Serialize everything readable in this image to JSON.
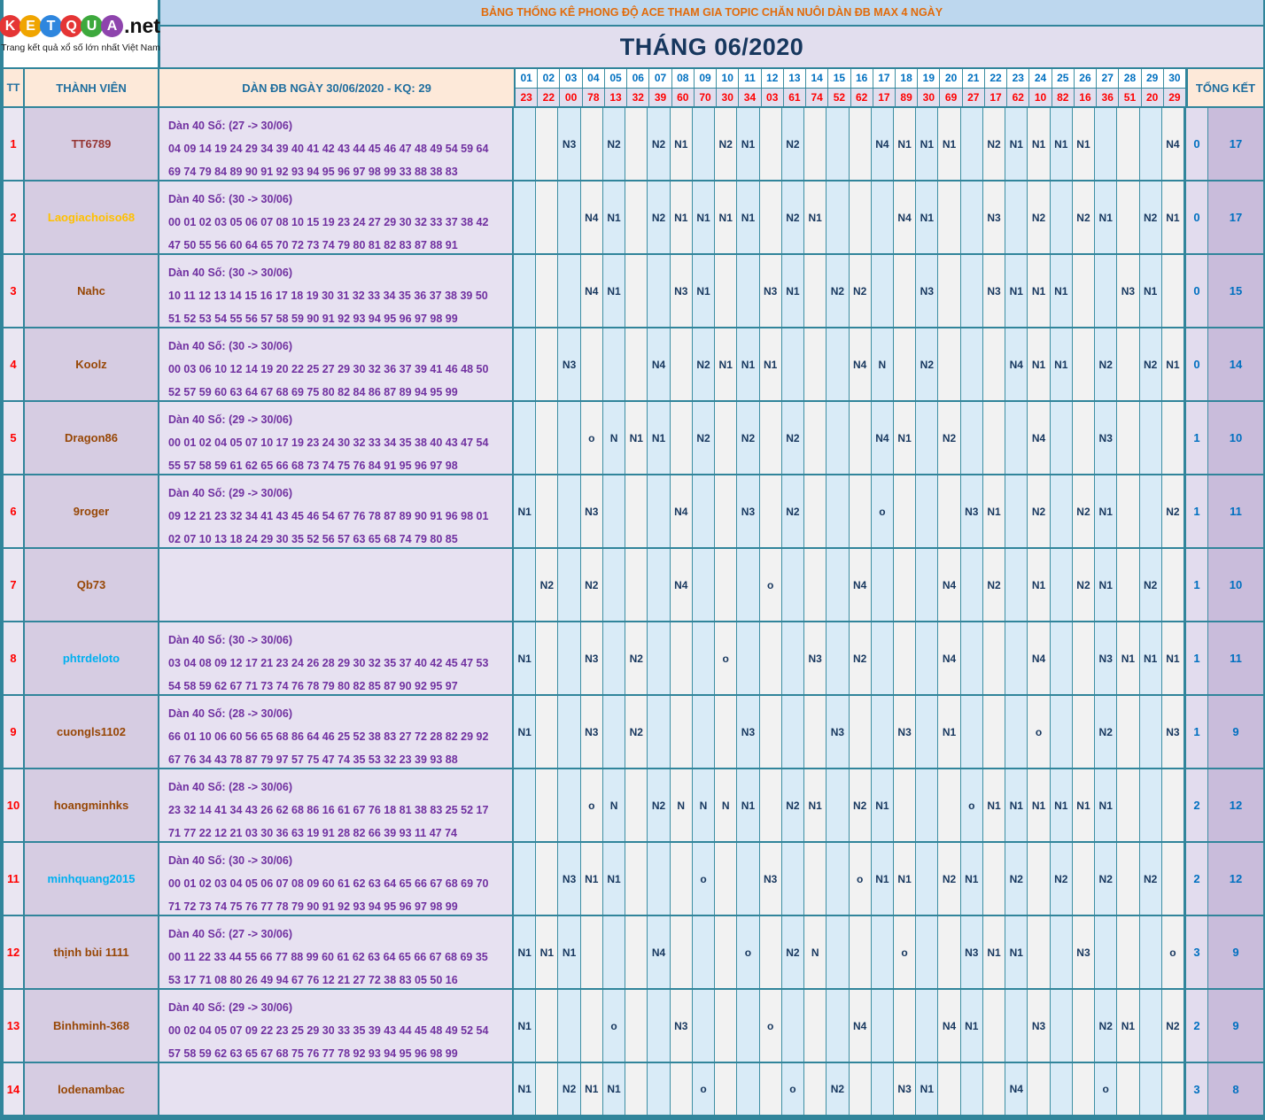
{
  "logo": {
    "letters": [
      {
        "ch": "K",
        "bg": "#E53535"
      },
      {
        "ch": "E",
        "bg": "#F0A500"
      },
      {
        "ch": "T",
        "bg": "#2E86DE"
      },
      {
        "ch": "Q",
        "bg": "#E53535"
      },
      {
        "ch": "U",
        "bg": "#3DA93D"
      },
      {
        "ch": "A",
        "bg": "#8E44AD"
      }
    ],
    "suffix": ".net",
    "tagline": "Trang kết quả xổ số lớn nhất Việt Nam"
  },
  "header": {
    "title": "BẢNG THỐNG KÊ PHONG ĐỘ ACE THAM GIA TOPIC CHĂN NUÔI DÀN ĐB MAX 4 NGÀY",
    "month": "THÁNG 06/2020"
  },
  "colors": {
    "teal_border": "#31859B",
    "title_orange": "#E26B0A",
    "navy_text": "#17375E",
    "purple_text": "#7030A0",
    "blue_header": "#0070C0",
    "red_value": "#FF0000",
    "default_name": "#974706"
  },
  "table": {
    "col_tt": "TT",
    "col_member": "THÀNH VIÊN",
    "col_dan": "DÀN ĐB NGÀY 30/06/2020 - KQ: 29",
    "col_total": "TỔNG KẾT",
    "days": [
      "01",
      "02",
      "03",
      "04",
      "05",
      "06",
      "07",
      "08",
      "09",
      "10",
      "11",
      "12",
      "13",
      "14",
      "15",
      "16",
      "17",
      "18",
      "19",
      "20",
      "21",
      "22",
      "23",
      "24",
      "25",
      "26",
      "27",
      "28",
      "29",
      "30"
    ],
    "day_values": [
      "23",
      "22",
      "00",
      "78",
      "13",
      "32",
      "39",
      "60",
      "70",
      "30",
      "34",
      "03",
      "61",
      "74",
      "52",
      "62",
      "17",
      "89",
      "30",
      "69",
      "27",
      "17",
      "62",
      "10",
      "82",
      "16",
      "36",
      "51",
      "20",
      "29"
    ],
    "rows": [
      {
        "tt": "1",
        "name": "TT6789",
        "name_color": "#963634",
        "desc": "Dàn 40 Số: (27 -> 30/06)",
        "nums1": "04 09 14 19 24 29 34 39 40 41 42 43 44 45 46 47 48 49 54 59 64",
        "nums2": "69 74 79 84 89 90 91 92 93 94 95 96 97 98 99 33 88 38 83",
        "cells": {
          "3": "N3",
          "5": "N2",
          "7": "N2",
          "8": "N1",
          "10": "N2",
          "11": "N1",
          "13": "N2",
          "17": "N4",
          "18": "N1",
          "19": "N1",
          "20": "N1",
          "22": "N2",
          "23": "N1",
          "24": "N1",
          "25": "N1",
          "26": "N1",
          "30": "N4"
        },
        "o_total": "0",
        "n_total": "17"
      },
      {
        "tt": "2",
        "name": "Laogiachoiso68",
        "name_color": "#FFC000",
        "desc": "Dàn 40 Số: (30 -> 30/06)",
        "nums1": "00 01 02 03 05 06 07 08 10 15 19 23 24 27 29 30 32 33 37 38 42",
        "nums2": "47 50 55 56 60 64 65 70 72 73 74 79 80 81 82 83 87 88 91",
        "cells": {
          "4": "N4",
          "5": "N1",
          "7": "N2",
          "8": "N1",
          "9": "N1",
          "10": "N1",
          "11": "N1",
          "13": "N2",
          "14": "N1",
          "18": "N4",
          "19": "N1",
          "22": "N3",
          "24": "N2",
          "26": "N2",
          "27": "N1",
          "29": "N2",
          "30": "N1"
        },
        "o_total": "0",
        "n_total": "17"
      },
      {
        "tt": "3",
        "name": "Nahc",
        "name_color": "#974706",
        "desc": "Dàn 40 Số: (30 -> 30/06)",
        "nums1": "10 11 12 13 14 15 16 17 18 19 30 31 32 33 34 35 36 37 38 39 50",
        "nums2": "51 52 53 54 55 56 57 58 59 90 91 92 93 94 95 96 97 98 99",
        "cells": {
          "4": "N4",
          "5": "N1",
          "8": "N3",
          "9": "N1",
          "12": "N3",
          "13": "N1",
          "15": "N2",
          "16": "N2",
          "19": "N3",
          "22": "N3",
          "23": "N1",
          "24": "N1",
          "25": "N1",
          "28": "N3",
          "29": "N1"
        },
        "o_total": "0",
        "n_total": "15"
      },
      {
        "tt": "4",
        "name": "Koolz",
        "name_color": "#974706",
        "desc": "Dàn 40 Số: (30 -> 30/06)",
        "nums1": "00 03 06 10 12 14 19 20 22 25 27 29 30 32 36 37 39 41 46 48 50",
        "nums2": "52 57 59 60 63 64 67 68 69 75 80 82 84 86 87 89 94 95 99",
        "cells": {
          "3": "N3",
          "7": "N4",
          "9": "N2",
          "10": "N1",
          "11": "N1",
          "12": "N1",
          "16": "N4",
          "17": "N",
          "19": "N2",
          "23": "N4",
          "24": "N1",
          "25": "N1",
          "27": "N2",
          "29": "N2",
          "30": "N1"
        },
        "o_total": "0",
        "n_total": "14"
      },
      {
        "tt": "5",
        "name": "Dragon86",
        "name_color": "#974706",
        "desc": "Dàn 40 Số: (29 -> 30/06)",
        "nums1": "00 01 02 04 05 07 10 17 19 23 24 30 32 33 34 35 38 40 43 47 54",
        "nums2": "55 57 58 59 61 62 65 66 68 73 74 75 76 84 91 95 96 97 98",
        "cells": {
          "4": "o",
          "5": "N",
          "6": "N1",
          "7": "N1",
          "9": "N2",
          "11": "N2",
          "13": "N2",
          "17": "N4",
          "18": "N1",
          "20": "N2",
          "24": "N4",
          "27": "N3"
        },
        "o_total": "1",
        "n_total": "10"
      },
      {
        "tt": "6",
        "name": "9roger",
        "name_color": "#974706",
        "desc": "Dàn 40 Số: (29 -> 30/06)",
        "nums1": "09 12 21 23 32 34 41 43 45 46 54 67 76 78 87 89 90 91 96 98 01",
        "nums2": "02 07 10 13 18 24 29 30 35 52 56 57 63 65 68 74 79 80 85",
        "cells": {
          "1": "N1",
          "4": "N3",
          "8": "N4",
          "11": "N3",
          "13": "N2",
          "17": "o",
          "21": "N3",
          "22": "N1",
          "24": "N2",
          "26": "N2",
          "27": "N1",
          "30": "N2"
        },
        "o_total": "1",
        "n_total": "11"
      },
      {
        "tt": "7",
        "name": "Qb73",
        "name_color": "#974706",
        "desc": "",
        "nums1": "",
        "nums2": "",
        "cells": {
          "2": "N2",
          "4": "N2",
          "8": "N4",
          "12": "o",
          "16": "N4",
          "20": "N4",
          "22": "N2",
          "24": "N1",
          "26": "N2",
          "27": "N1",
          "29": "N2"
        },
        "o_total": "1",
        "n_total": "10"
      },
      {
        "tt": "8",
        "name": "phtrdeloto",
        "name_color": "#00B0F0",
        "desc": "Dàn 40 Số: (30 -> 30/06)",
        "nums1": "03 04 08 09 12 17 21 23 24 26 28 29 30 32 35 37 40 42 45 47 53",
        "nums2": "54 58 59 62 67 71 73 74 76 78 79 80 82 85 87 90 92 95 97",
        "cells": {
          "1": "N1",
          "4": "N3",
          "6": "N2",
          "10": "o",
          "14": "N3",
          "16": "N2",
          "20": "N4",
          "24": "N4",
          "27": "N3",
          "28": "N1",
          "29": "N1",
          "30": "N1"
        },
        "o_total": "1",
        "n_total": "11"
      },
      {
        "tt": "9",
        "name": "cuongls1102",
        "name_color": "#974706",
        "desc": "Dàn 40 Số: (28 -> 30/06)",
        "nums1": "66 01 10 06 60 56 65 68 86 64 46 25 52 38 83 27 72 28 82 29 92",
        "nums2": "67 76 34 43 78 87 79 97 57 75 47 74 35 53 32 23 39 93 88",
        "cells": {
          "1": "N1",
          "4": "N3",
          "6": "N2",
          "11": "N3",
          "15": "N3",
          "18": "N3",
          "20": "N1",
          "24": "o",
          "27": "N2",
          "30": "N3"
        },
        "o_total": "1",
        "n_total": "9"
      },
      {
        "tt": "10",
        "name": "hoangminhks",
        "name_color": "#974706",
        "desc": "Dàn 40 Số: (28 -> 30/06)",
        "nums1": "23 32 14 41 34 43 26 62 68 86 16 61 67 76 18 81 38 83 25 52 17",
        "nums2": "71 77 22 12 21 03 30 36 63 19 91 28 82 66 39 93 11 47 74",
        "cells": {
          "4": "o",
          "5": "N",
          "7": "N2",
          "8": "N",
          "9": "N",
          "10": "N",
          "11": "N1",
          "13": "N2",
          "14": "N1",
          "16": "N2",
          "17": "N1",
          "21": "o",
          "22": "N1",
          "23": "N1",
          "24": "N1",
          "25": "N1",
          "26": "N1",
          "27": "N1"
        },
        "o_total": "2",
        "n_total": "12"
      },
      {
        "tt": "11",
        "name": "minhquang2015",
        "name_color": "#00B0F0",
        "desc": "Dàn 40 Số: (30 -> 30/06)",
        "nums1": "00 01 02 03 04 05 06 07 08 09 60 61 62 63 64 65 66 67 68 69 70",
        "nums2": "71 72 73 74 75 76 77 78 79 90 91 92 93 94 95 96 97 98 99",
        "cells": {
          "3": "N3",
          "4": "N1",
          "5": "N1",
          "9": "o",
          "12": "N3",
          "16": "o",
          "17": "N1",
          "18": "N1",
          "20": "N2",
          "21": "N1",
          "23": "N2",
          "25": "N2",
          "27": "N2",
          "29": "N2"
        },
        "o_total": "2",
        "n_total": "12"
      },
      {
        "tt": "12",
        "name": "thịnh bùi 1111",
        "name_color": "#974706",
        "desc": "Dàn 40 Số: (27 -> 30/06)",
        "nums1": "00 11 22 33 44 55 66 77 88 99 60 61 62 63 64 65 66 67 68 69 35",
        "nums2": "53 17 71 08 80 26 49 94 67 76 12 21 27 72 38 83 05 50 16",
        "cells": {
          "1": "N1",
          "2": "N1",
          "3": "N1",
          "7": "N4",
          "11": "o",
          "13": "N2",
          "14": "N",
          "18": "o",
          "21": "N3",
          "22": "N1",
          "23": "N1",
          "26": "N3",
          "30": "o"
        },
        "o_total": "3",
        "n_total": "9"
      },
      {
        "tt": "13",
        "name": "Binhminh-368",
        "name_color": "#974706",
        "desc": "Dàn 40 Số: (29 -> 30/06)",
        "nums1": "00 02 04 05 07 09 22 23 25 29 30 33 35 39 43 44 45 48 49 52 54",
        "nums2": "57 58 59 62 63 65 67 68 75 76 77 78 92 93 94 95 96 98 99",
        "cells": {
          "1": "N1",
          "5": "o",
          "8": "N3",
          "12": "o",
          "16": "N4",
          "20": "N4",
          "21": "N1",
          "24": "N3",
          "27": "N2",
          "28": "N1",
          "30": "N2"
        },
        "o_total": "2",
        "n_total": "9"
      },
      {
        "tt": "14",
        "name": "lodenambac",
        "name_color": "#974706",
        "desc": "",
        "nums1": "",
        "nums2": "",
        "cells": {
          "1": "N1",
          "3": "N2",
          "4": "N1",
          "5": "N1",
          "9": "o",
          "13": "o",
          "15": "N2",
          "18": "N3",
          "19": "N1",
          "23": "N4",
          "27": "o"
        },
        "o_total": "3",
        "n_total": "8"
      }
    ]
  }
}
